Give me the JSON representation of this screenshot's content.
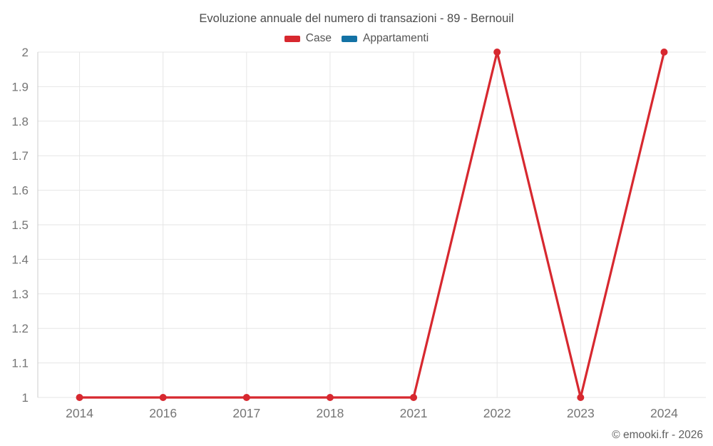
{
  "chart": {
    "title": "Evoluzione annuale del numero di transazioni - 89 - Bernouil",
    "legend": [
      {
        "label": "Case",
        "color": "#d7282f"
      },
      {
        "label": "Appartamenti",
        "color": "#1372a5"
      }
    ],
    "credit": "© emooki.fr - 2026"
  },
  "chart_data": {
    "type": "line",
    "title": "Evoluzione annuale del numero di transazioni - 89 - Bernouil",
    "xlabel": "",
    "ylabel": "",
    "categories": [
      "2014",
      "2016",
      "2017",
      "2018",
      "2021",
      "2022",
      "2023",
      "2024"
    ],
    "series": [
      {
        "name": "Case",
        "color": "#d7282f",
        "values": [
          1,
          1,
          1,
          1,
          1,
          2,
          1,
          2
        ]
      },
      {
        "name": "Appartamenti",
        "color": "#1372a5",
        "values": []
      }
    ],
    "ylim": [
      1,
      2
    ],
    "y_ticks": [
      1,
      1.1,
      1.2,
      1.3,
      1.4,
      1.5,
      1.6,
      1.7,
      1.8,
      1.9,
      2
    ],
    "y_tick_labels": [
      "1",
      "1.1",
      "1.2",
      "1.3",
      "1.4",
      "1.5",
      "1.6",
      "1.7",
      "1.8",
      "1.9",
      "2"
    ],
    "grid": true,
    "legend_position": "top",
    "colors": {
      "grid": "#e6e6e6",
      "axis": "#cccccc",
      "tick_label": "#757575"
    }
  }
}
